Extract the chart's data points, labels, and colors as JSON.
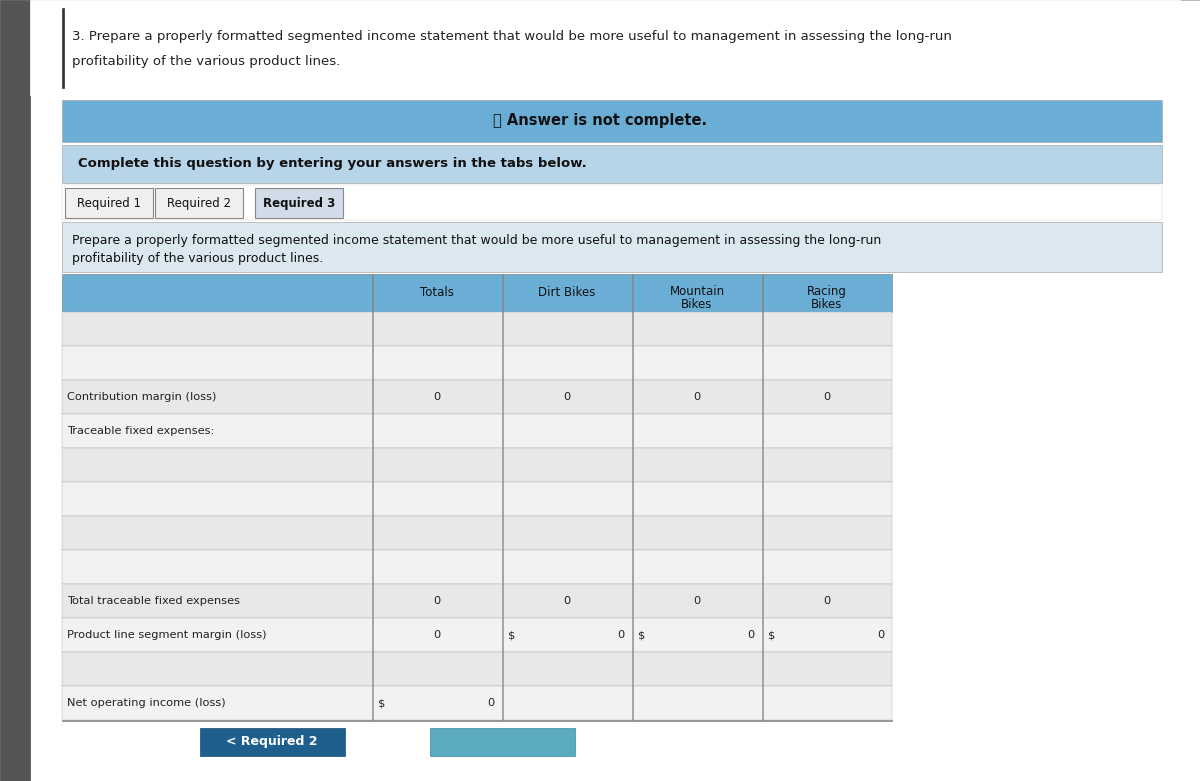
{
  "page_bg": "#c0c0c0",
  "left_bar_color": "#555555",
  "white_bg": "#ffffff",
  "title_text1": "3. Prepare a properly formatted segmented income statement that would be more useful to management in assessing the long-run",
  "title_text2": "profitability of the various product lines.",
  "answer_banner_color": "#6aaed6",
  "answer_banner_text": "ⓧ Answer is not complete.",
  "complete_banner_color": "#b8d4e8",
  "complete_banner_text": "Complete this question by entering your answers in the tabs below.",
  "tabs": [
    "Required 1",
    "Required 2",
    "Required 3"
  ],
  "active_tab_idx": 2,
  "sub_title1": "Prepare a properly formatted segmented income statement that would be more useful to management in assessing the long-run",
  "sub_title2": "profitability of the various product lines.",
  "header_bg": "#6aaed6",
  "header_row": [
    "Totals",
    "Dirt Bikes",
    "Mountain\nBikes",
    "Racing\nBikes"
  ],
  "table_rows": [
    {
      "label": "",
      "values": [
        "",
        "",
        "",
        ""
      ],
      "separator_above": false
    },
    {
      "label": "",
      "values": [
        "",
        "",
        "",
        ""
      ],
      "separator_above": false
    },
    {
      "label": "Contribution margin (loss)",
      "values": [
        "0",
        "0",
        "0",
        "0"
      ],
      "separator_above": false
    },
    {
      "label": "Traceable fixed expenses:",
      "values": [
        "",
        "",
        "",
        ""
      ],
      "separator_above": false
    },
    {
      "label": "",
      "values": [
        "",
        "",
        "",
        ""
      ],
      "separator_above": false
    },
    {
      "label": "",
      "values": [
        "",
        "",
        "",
        ""
      ],
      "separator_above": false
    },
    {
      "label": "",
      "values": [
        "",
        "",
        "",
        ""
      ],
      "separator_above": false
    },
    {
      "label": "",
      "values": [
        "",
        "",
        "",
        ""
      ],
      "separator_above": false
    },
    {
      "label": "Total traceable fixed expenses",
      "values": [
        "0",
        "0",
        "0",
        "0"
      ],
      "separator_above": false
    },
    {
      "label": "Product line segment margin (loss)",
      "values": [
        "0",
        "$_0",
        "$_0",
        "$_0"
      ],
      "separator_above": false
    },
    {
      "label": "",
      "values": [
        "",
        "",
        "",
        ""
      ],
      "separator_above": false
    },
    {
      "label": "Net operating income (loss)",
      "values": [
        "$_0",
        "",
        "",
        ""
      ],
      "separator_above": false
    }
  ],
  "bottom_nav_text": "< Required 2",
  "bottom_nav_color": "#1e5f8e",
  "row_alt1": "#e8e8e8",
  "row_alt2": "#f2f2f2",
  "grid_color": "#aaaaaa",
  "text_color": "#222222"
}
